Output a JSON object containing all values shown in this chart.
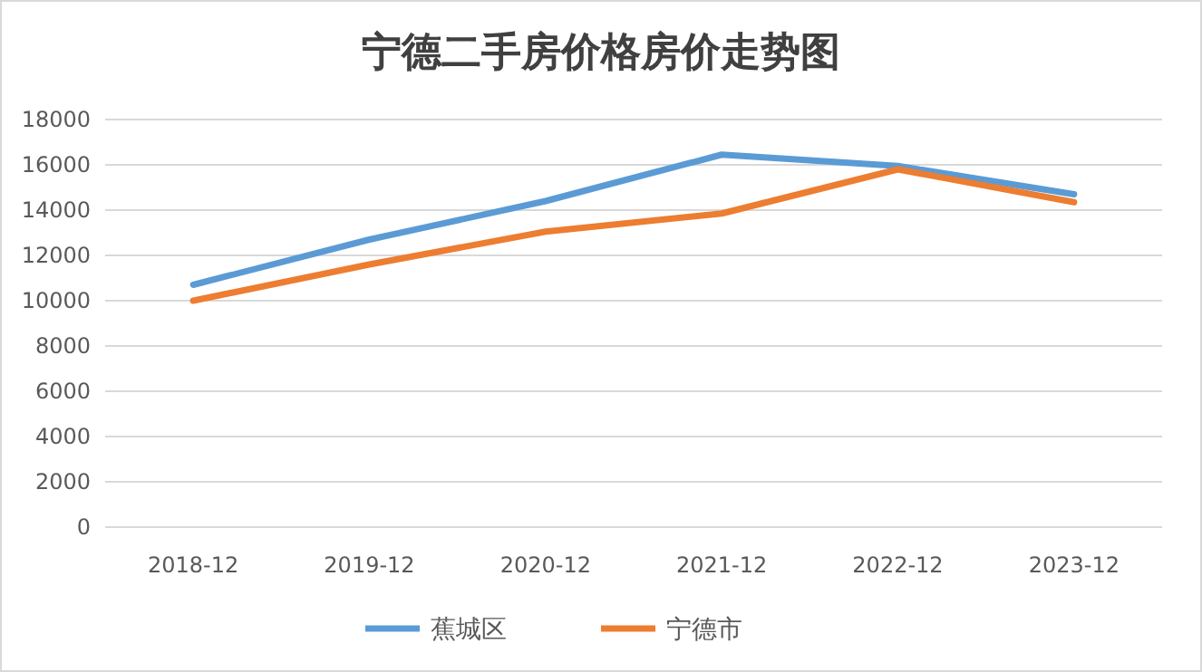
{
  "chart_data": {
    "type": "line",
    "title": "宁德二手房价格房价走势图",
    "categories": [
      "2018-12",
      "2019-12",
      "2020-12",
      "2021-12",
      "2022-12",
      "2023-12"
    ],
    "series": [
      {
        "name": "蕉城区",
        "color": "#5b9bd5",
        "values": [
          10700,
          12700,
          14400,
          16450,
          15950,
          14700
        ]
      },
      {
        "name": "宁德市",
        "color": "#ed7d31",
        "values": [
          10000,
          11600,
          13050,
          13850,
          15800,
          14350
        ]
      }
    ],
    "ylim": [
      0,
      18000
    ],
    "yticks": [
      0,
      2000,
      4000,
      6000,
      8000,
      10000,
      12000,
      14000,
      16000,
      18000
    ],
    "grid": "y",
    "legend": "bottom",
    "marker": "none",
    "line_style": "solid"
  }
}
